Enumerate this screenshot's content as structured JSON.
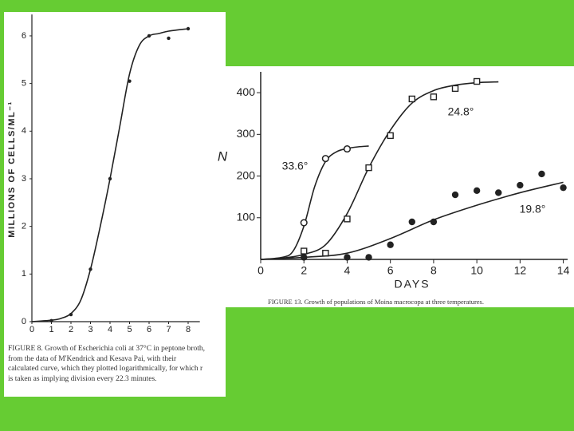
{
  "chart_data": [
    {
      "type": "scatter",
      "y_label": "MILLIONS OF CELLS/ML⁻¹",
      "caption": "FIGURE 8. Growth of Escherichia coli at 37°C in peptone broth, from the data of M'Kendrick and Kesava Pai, with their calculated curve, which they plotted logarithmically, for which r is taken as implying division every 22.3 minutes.",
      "xlim": [
        0,
        8.6
      ],
      "ylim": [
        0,
        6.45
      ],
      "xticks": [
        0,
        1,
        2,
        3,
        4,
        5,
        6,
        7,
        8
      ],
      "yticks": [
        0,
        1,
        2,
        3,
        4,
        5,
        6
      ],
      "color": "#222222",
      "series": [
        {
          "marker": "dot",
          "x": [
            1,
            2,
            3,
            4,
            5,
            6,
            7,
            8
          ],
          "values": [
            0.02,
            0.15,
            1.1,
            3.0,
            5.05,
            6.0,
            5.95,
            6.15
          ],
          "curve": {
            "x": [
              0,
              1,
              1.5,
              2,
              2.5,
              3,
              3.5,
              4,
              4.5,
              5,
              5.5,
              6,
              6.5,
              7,
              8
            ],
            "values": [
              0,
              0.03,
              0.07,
              0.17,
              0.45,
              1.1,
              2.0,
              3.0,
              4.1,
              5.2,
              5.8,
              6.0,
              6.05,
              6.1,
              6.15
            ]
          }
        }
      ]
    },
    {
      "type": "scatter",
      "y_label": "N",
      "x_label": "DAYS",
      "caption": "FIGURE 13. Growth of populations of Moina macrocopa at three temperatures.",
      "xlim": [
        0,
        14.2
      ],
      "ylim": [
        0,
        450
      ],
      "xticks": [
        0,
        2,
        4,
        6,
        8,
        10,
        12,
        14
      ],
      "yticks": [
        100,
        200,
        300,
        400
      ],
      "color": "#222222",
      "series": [
        {
          "name": "33.6°",
          "marker": "open-circle",
          "x": [
            2,
            3,
            4
          ],
          "values": [
            88,
            242,
            265
          ],
          "curve": {
            "x": [
              0,
              1,
              1.5,
              2,
              2.5,
              3,
              3.5,
              4,
              4.5,
              5
            ],
            "values": [
              0,
              5,
              20,
              80,
              175,
              235,
              258,
              266,
              270,
              272
            ]
          }
        },
        {
          "name": "24.8°",
          "marker": "open-square",
          "x": [
            2,
            3,
            4,
            5,
            6,
            7,
            8,
            9,
            10
          ],
          "values": [
            20,
            15,
            97,
            220,
            297,
            385,
            390,
            410,
            427
          ],
          "curve": {
            "x": [
              0,
              1,
              2,
              3,
              4,
              5,
              6,
              7,
              8,
              9,
              10,
              11
            ],
            "values": [
              0,
              3,
              12,
              35,
              110,
              220,
              310,
              375,
              405,
              418,
              424,
              426
            ]
          }
        },
        {
          "name": "19.8°",
          "marker": "filled-circle",
          "x": [
            2,
            4,
            5,
            6,
            7,
            8,
            9,
            10,
            11,
            12,
            13,
            14
          ],
          "values": [
            5,
            5,
            5,
            35,
            90,
            90,
            155,
            165,
            160,
            178,
            205,
            172
          ],
          "curve": {
            "x": [
              0,
              2,
              4,
              6,
              8,
              10,
              12,
              14
            ],
            "values": [
              0,
              5,
              15,
              50,
              95,
              130,
              160,
              185
            ]
          }
        }
      ]
    }
  ]
}
